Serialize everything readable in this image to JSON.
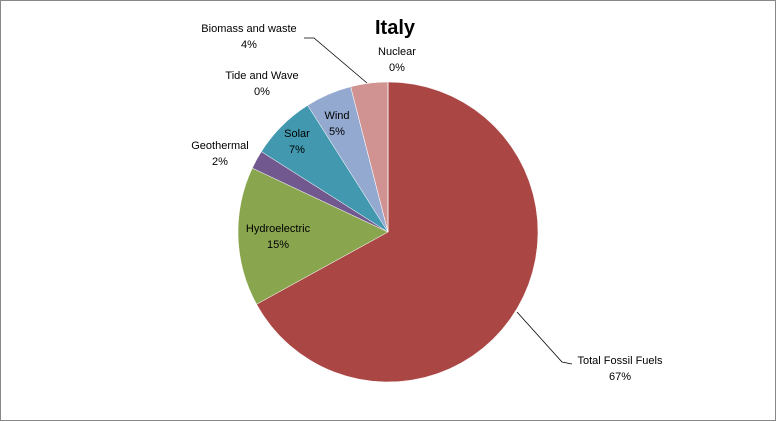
{
  "chart_data": {
    "type": "pie",
    "title": "Italy",
    "categories": [
      "Total Fossil Fuels",
      "Hydroelectric",
      "Geothermal",
      "Solar",
      "Wind",
      "Tide and Wave",
      "Biomass and waste",
      "Nuclear"
    ],
    "values": [
      67,
      15,
      2,
      7,
      5,
      0,
      4,
      0
    ],
    "value_labels": [
      "67%",
      "15%",
      "2%",
      "7%",
      "5%",
      "0%",
      "4%",
      "0%"
    ],
    "colors": [
      "#aa4744",
      "#89a54e",
      "#71588f",
      "#4198af",
      "#93a9cf",
      "#2f5d8a",
      "#d19392",
      "#db843d"
    ]
  }
}
